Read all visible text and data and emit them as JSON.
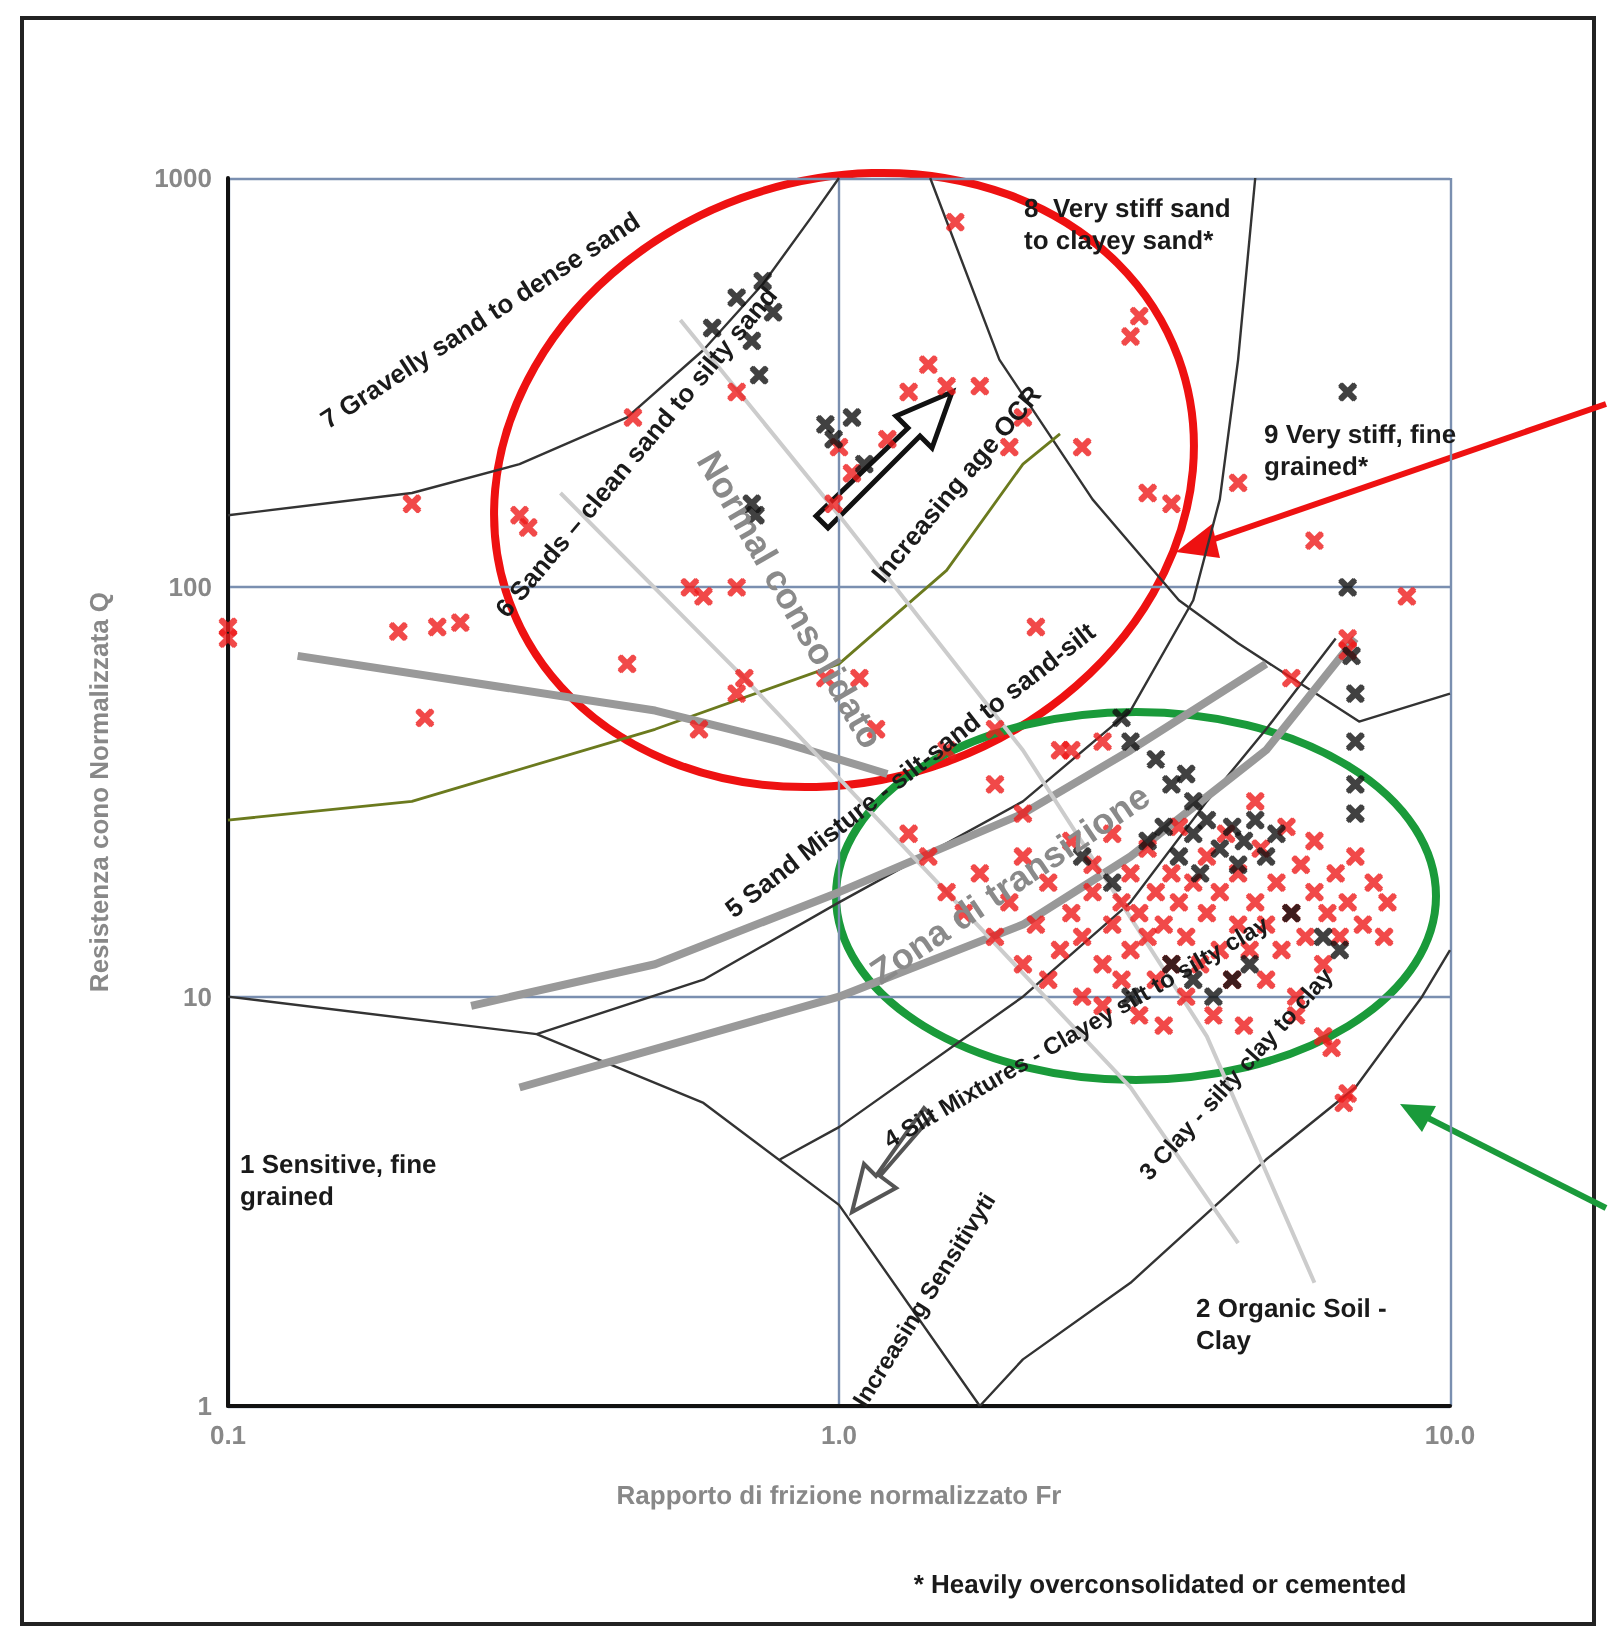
{
  "chart_data": {
    "type": "scatter",
    "xlabel": "Rapporto di frizione normalizzato Fr",
    "ylabel": "Resistenza cono Normalizzata Q",
    "log": "xy",
    "grid": true,
    "marker": "cross",
    "xlim": [
      0.1,
      10
    ],
    "xticks": [
      {
        "value": 0.1,
        "label": "0.1"
      },
      {
        "value": 1,
        "label": "1.0"
      },
      {
        "value": 10,
        "label": "10.0"
      }
    ],
    "ylim": [
      1,
      1000
    ],
    "yticks": [
      1,
      10,
      100,
      1000
    ],
    "annotations": [
      "7 Gravelly sand to dense sand",
      "6 Sands – clean sand to silty sand",
      "8  Very stiff sand to clayey sand*",
      "9 Very stiff, fine grained*",
      "Increasing age OCR",
      "5 Sand Misture - silt-sand to sand-silt",
      "4 Silt Mixtures - Clayey silt to silty clay",
      "3 Clay - silty clay to clay",
      "2 Organic Soil - Clay",
      "1 Sensitive, fine grained",
      "Increasing Sensitivyti",
      "Normal consolidato",
      "Zona di transizione",
      "* Heavily overconsolidated or cemented"
    ],
    "series": [
      {
        "type": "line",
        "marker": "none",
        "color": "#333333",
        "x": [
          0.1,
          0.2,
          0.3,
          0.45,
          0.6,
          0.75,
          0.9,
          1.0
        ],
        "values": [
          150,
          170,
          200,
          260,
          380,
          550,
          800,
          1000
        ]
      },
      {
        "type": "line",
        "marker": "none",
        "color": "#333333",
        "x": [
          1.41,
          1.83,
          2.6,
          3.6,
          4.5,
          7.1,
          10
        ],
        "values": [
          1000,
          360,
          164,
          93,
          73,
          47,
          55
        ]
      },
      {
        "type": "line",
        "marker": "none",
        "color": "#333333",
        "x": [
          0.32,
          0.6,
          1.0,
          2,
          3,
          3.8,
          4.2,
          4.5,
          4.8
        ],
        "values": [
          8.1,
          11,
          17,
          30,
          50,
          93,
          164,
          360,
          1000
        ]
      },
      {
        "type": "line",
        "marker": "none",
        "color": "#6b7a1e",
        "x": [
          0.1,
          0.2,
          0.5,
          1.0,
          1.5,
          2.0,
          2.3
        ],
        "values": [
          27,
          30,
          45,
          65,
          110,
          200,
          237
        ]
      },
      {
        "type": "line",
        "marker": "none",
        "color": "#333333",
        "x": [
          0.1,
          0.32,
          0.6,
          1.0,
          1.7
        ],
        "values": [
          10,
          8.1,
          5.5,
          3.1,
          1
        ]
      },
      {
        "type": "line",
        "marker": "none",
        "color": "#333333",
        "x": [
          0.8,
          1,
          2,
          3,
          4,
          5,
          6.5
        ],
        "values": [
          4,
          4.8,
          10,
          17,
          30,
          45,
          75
        ]
      },
      {
        "type": "line",
        "marker": "none",
        "color": "#333333",
        "x": [
          1.7,
          2,
          3,
          5,
          7,
          9,
          10
        ],
        "values": [
          1,
          1.3,
          2,
          4,
          6,
          10,
          13
        ]
      },
      {
        "type": "line",
        "marker": "none",
        "color": "#999999",
        "x": [
          0.13,
          0.5,
          0.8,
          1.2
        ],
        "values": [
          68,
          50,
          42,
          35
        ]
      },
      {
        "type": "line",
        "marker": "none",
        "color": "#999999",
        "x": [
          0.25,
          0.5,
          1,
          2,
          3,
          5
        ],
        "values": [
          9.5,
          12,
          18,
          28,
          40,
          65
        ]
      },
      {
        "type": "line",
        "marker": "none",
        "color": "#999999",
        "x": [
          0.3,
          1,
          2,
          3,
          5,
          7
        ],
        "values": [
          6,
          10,
          15,
          22,
          40,
          75
        ]
      },
      {
        "type": "line",
        "marker": "none",
        "color": "#cccccc",
        "x": [
          0.55,
          1.0,
          2,
          4,
          6
        ],
        "values": [
          450,
          150,
          40,
          8,
          2
        ]
      },
      {
        "type": "line",
        "marker": "none",
        "color": "#cccccc",
        "x": [
          0.35,
          0.7,
          1.5,
          3,
          4.5
        ],
        "values": [
          170,
          60,
          18,
          6,
          2.5
        ]
      },
      {
        "color": "#ee1c1c",
        "x": [
          0.1,
          0.1,
          0.19,
          0.2,
          0.21,
          0.22,
          0.24,
          0.3,
          0.31,
          0.45,
          0.46,
          0.57,
          0.59,
          0.6,
          0.68,
          0.68,
          0.68,
          0.7,
          0.95,
          0.98,
          1.0,
          1.05,
          1.08,
          1.15,
          1.2,
          1.3,
          1.4,
          1.5,
          1.55,
          1.7,
          1.8,
          1.9,
          2.0,
          2.1,
          2.3,
          2.5,
          3.0,
          3.1,
          3.2,
          3.5,
          4.5,
          6.0,
          8.5,
          6.8,
          6.8,
          4.8,
          2.7,
          1.5,
          5.5,
          1.4,
          1.5,
          1.6,
          1.7,
          1.8,
          1.9,
          2.0,
          2.0,
          2.1,
          2.2,
          2.2,
          2.3,
          2.4,
          2.4,
          2.5,
          2.5,
          2.6,
          2.6,
          2.7,
          2.7,
          2.8,
          2.8,
          2.9,
          2.9,
          3.0,
          3.0,
          3.1,
          3.1,
          3.2,
          3.2,
          3.3,
          3.3,
          3.4,
          3.4,
          3.5,
          3.5,
          3.6,
          3.6,
          3.7,
          3.7,
          3.8,
          3.9,
          4.0,
          4.0,
          4.1,
          4.2,
          4.2,
          4.3,
          4.4,
          4.5,
          4.5,
          4.6,
          4.7,
          4.8,
          4.9,
          5.0,
          5.0,
          5.2,
          5.3,
          5.4,
          5.5,
          5.6,
          5.7,
          5.8,
          6.0,
          6.0,
          6.2,
          6.3,
          6.5,
          6.6,
          6.8,
          7.0,
          7.2,
          7.5,
          7.8,
          7.9,
          6.2,
          6.4,
          6.7,
          6.8,
          5.6,
          2.0,
          2.4,
          1.8,
          1.3
        ],
        "values": [
          80,
          75,
          78,
          160,
          48,
          80,
          82,
          150,
          140,
          65,
          260,
          100,
          45,
          95,
          300,
          100,
          55,
          60,
          60,
          160,
          220,
          190,
          60,
          45,
          230,
          300,
          350,
          310,
          780,
          310,
          45,
          220,
          260,
          80,
          40,
          220,
          410,
          460,
          170,
          160,
          180,
          130,
          95,
          75,
          70,
          30,
          42,
          40,
          60,
          22,
          18,
          16,
          20,
          14,
          17,
          12,
          22,
          15,
          19,
          11,
          13,
          16,
          24,
          10,
          14,
          18,
          21,
          12,
          9.5,
          15,
          25,
          11,
          17,
          13,
          20,
          9,
          16,
          14,
          23,
          11,
          18,
          8.5,
          15,
          12,
          20,
          17,
          26,
          10,
          14,
          19,
          12,
          16,
          22,
          9,
          13,
          18,
          25,
          11,
          15,
          20,
          8.5,
          13,
          17,
          23,
          11,
          15,
          19,
          13,
          26,
          16,
          10,
          21,
          14,
          18,
          24,
          12,
          16,
          20,
          14,
          17,
          22,
          15,
          19,
          14,
          17,
          8,
          7.5,
          5.5,
          5.8,
          9,
          28,
          40,
          33,
          25
        ]
      },
      {
        "color": "#111111",
        "x": [
          0.62,
          0.68,
          0.72,
          0.75,
          0.78,
          0.74,
          0.95,
          0.98,
          1.05,
          1.1,
          0.72,
          0.73,
          2.9,
          3.0,
          3.3,
          3.5,
          3.7,
          3.8,
          6.8,
          6.8,
          6.9,
          7.0,
          7.0,
          7.0,
          7.0,
          3.2,
          3.4,
          3.6,
          3.8,
          4.0,
          4.2,
          4.4,
          4.6,
          4.8,
          5.0,
          5.2,
          3.9,
          4.5,
          3.5,
          3.8,
          4.1,
          4.4,
          4.7,
          5.5,
          6.2,
          6.6,
          3.0,
          2.5,
          2.8
        ],
        "values": [
          430,
          510,
          400,
          560,
          470,
          330,
          250,
          230,
          260,
          200,
          160,
          150,
          48,
          42,
          38,
          33,
          35,
          30,
          300,
          100,
          68,
          55,
          42,
          33,
          28,
          24,
          26,
          22,
          25,
          27,
          23,
          26,
          24,
          27,
          22,
          25,
          20,
          21,
          12,
          11,
          10,
          11,
          12,
          16,
          14,
          13,
          10,
          22,
          19
        ]
      }
    ]
  }
}
